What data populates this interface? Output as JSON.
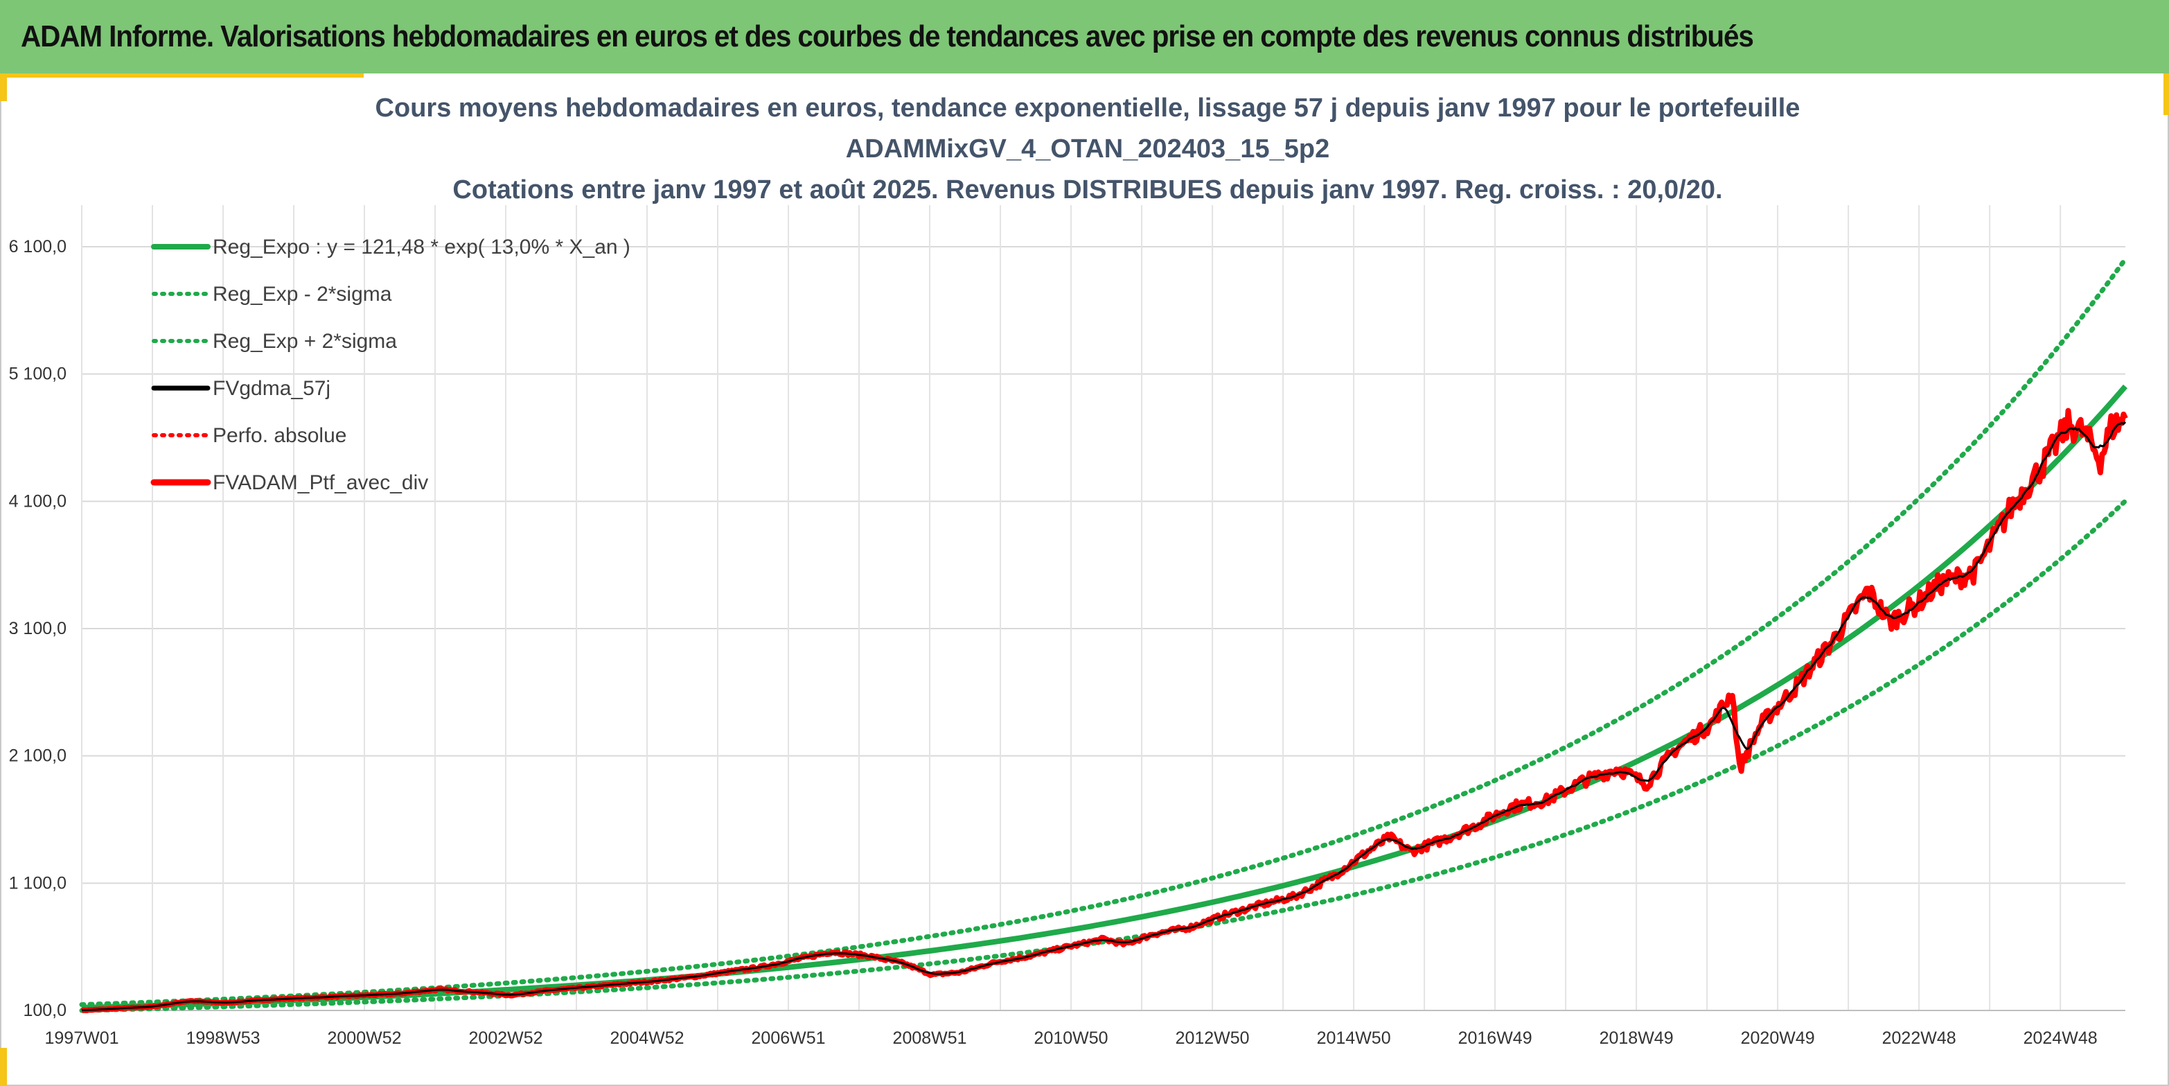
{
  "banner": {
    "title": "ADAM Informe. Valorisations hebdomadaires en euros et des courbes de tendances avec prise en compte des revenus connus distribués"
  },
  "colors": {
    "banner_bg": "#7dc675",
    "accent": "#f5c518",
    "title_text": "#44546a",
    "regression": "#1faa4a",
    "sigma_bands": "#1faa4a",
    "fvgdma": "#000000",
    "perfo": "#ff0000",
    "portfolio": "#ff0000"
  },
  "chart_data": {
    "type": "line",
    "title": [
      "Cours moyens hebdomadaires en euros, tendance exponentielle, lissage 57 j depuis janv 1997 pour le portefeuille",
      "ADAMMixGV_4_OTAN_202403_15_5p2",
      "Cotations entre janv 1997 et août 2025. Revenus DISTRIBUES depuis janv 1997. Reg. croiss. : 20,0/20."
    ],
    "x_tick_labels": [
      "1997W01",
      "1998W53",
      "2000W52",
      "2002W52",
      "2004W52",
      "2006W51",
      "2008W51",
      "2010W50",
      "2012W50",
      "2014W50",
      "2016W49",
      "2018W49",
      "2020W49",
      "2022W48",
      "2024W48"
    ],
    "x_range_years": [
      1997.0,
      2025.6
    ],
    "y_tick_labels": [
      "100,0",
      "1 100,0",
      "2 100,0",
      "3 100,0",
      "4 100,0",
      "5 100,0",
      "6 100,0"
    ],
    "ylim": [
      100,
      6100
    ],
    "grid": true,
    "legend_position": "top-left",
    "regression": {
      "intercept": 121.48,
      "rate": 0.13
    },
    "sigma_band_multiplier": {
      "lower": 0.82,
      "upper": 1.2
    },
    "series": [
      {
        "name": "Reg_Expo : y = 121,48 * exp( 13,0% *  X_an )",
        "style": "solid-thick",
        "color": "#1faa4a"
      },
      {
        "name": "Reg_Exp - 2*sigma",
        "style": "dotted",
        "color": "#1faa4a"
      },
      {
        "name": "Reg_Exp + 2*sigma",
        "style": "dotted",
        "color": "#1faa4a"
      },
      {
        "name": "FVgdma_57j",
        "style": "solid",
        "color": "#000000"
      },
      {
        "name": "Perfo. absolue",
        "style": "dotted",
        "color": "#ff0000"
      },
      {
        "name": "FVADAM_Ptf_avec_div",
        "style": "solid-thick",
        "color": "#ff0000",
        "points": [
          [
            1997.0,
            100
          ],
          [
            1998.0,
            130
          ],
          [
            1998.5,
            175
          ],
          [
            1999.0,
            160
          ],
          [
            1999.6,
            185
          ],
          [
            2000.2,
            200
          ],
          [
            2000.8,
            215
          ],
          [
            2001.4,
            230
          ],
          [
            2002.0,
            265
          ],
          [
            2002.5,
            245
          ],
          [
            2003.0,
            220
          ],
          [
            2003.5,
            255
          ],
          [
            2004.0,
            280
          ],
          [
            2004.5,
            305
          ],
          [
            2005.0,
            330
          ],
          [
            2005.5,
            360
          ],
          [
            2006.0,
            400
          ],
          [
            2006.5,
            440
          ],
          [
            2007.0,
            500
          ],
          [
            2007.5,
            560
          ],
          [
            2008.0,
            530
          ],
          [
            2008.5,
            470
          ],
          [
            2008.9,
            380
          ],
          [
            2009.3,
            400
          ],
          [
            2009.8,
            480
          ],
          [
            2010.3,
            530
          ],
          [
            2010.8,
            600
          ],
          [
            2011.3,
            660
          ],
          [
            2011.6,
            620
          ],
          [
            2012.0,
            700
          ],
          [
            2012.5,
            750
          ],
          [
            2013.0,
            850
          ],
          [
            2013.5,
            930
          ],
          [
            2014.0,
            1000
          ],
          [
            2014.5,
            1150
          ],
          [
            2015.0,
            1350
          ],
          [
            2015.3,
            1460
          ],
          [
            2015.6,
            1350
          ],
          [
            2016.0,
            1430
          ],
          [
            2016.5,
            1550
          ],
          [
            2017.0,
            1700
          ],
          [
            2017.5,
            1750
          ],
          [
            2018.0,
            1900
          ],
          [
            2018.5,
            2000
          ],
          [
            2018.9,
            1880
          ],
          [
            2019.3,
            2150
          ],
          [
            2019.8,
            2350
          ],
          [
            2020.1,
            2600
          ],
          [
            2020.2,
            2000
          ],
          [
            2020.5,
            2350
          ],
          [
            2021.0,
            2650
          ],
          [
            2021.5,
            3000
          ],
          [
            2022.0,
            3400
          ],
          [
            2022.3,
            3150
          ],
          [
            2022.7,
            3300
          ],
          [
            2023.0,
            3450
          ],
          [
            2023.5,
            3550
          ],
          [
            2024.0,
            4050
          ],
          [
            2024.4,
            4350
          ],
          [
            2024.8,
            4700
          ],
          [
            2025.0,
            4650
          ],
          [
            2025.25,
            4430
          ],
          [
            2025.4,
            4680
          ],
          [
            2025.6,
            4750
          ]
        ]
      }
    ]
  }
}
